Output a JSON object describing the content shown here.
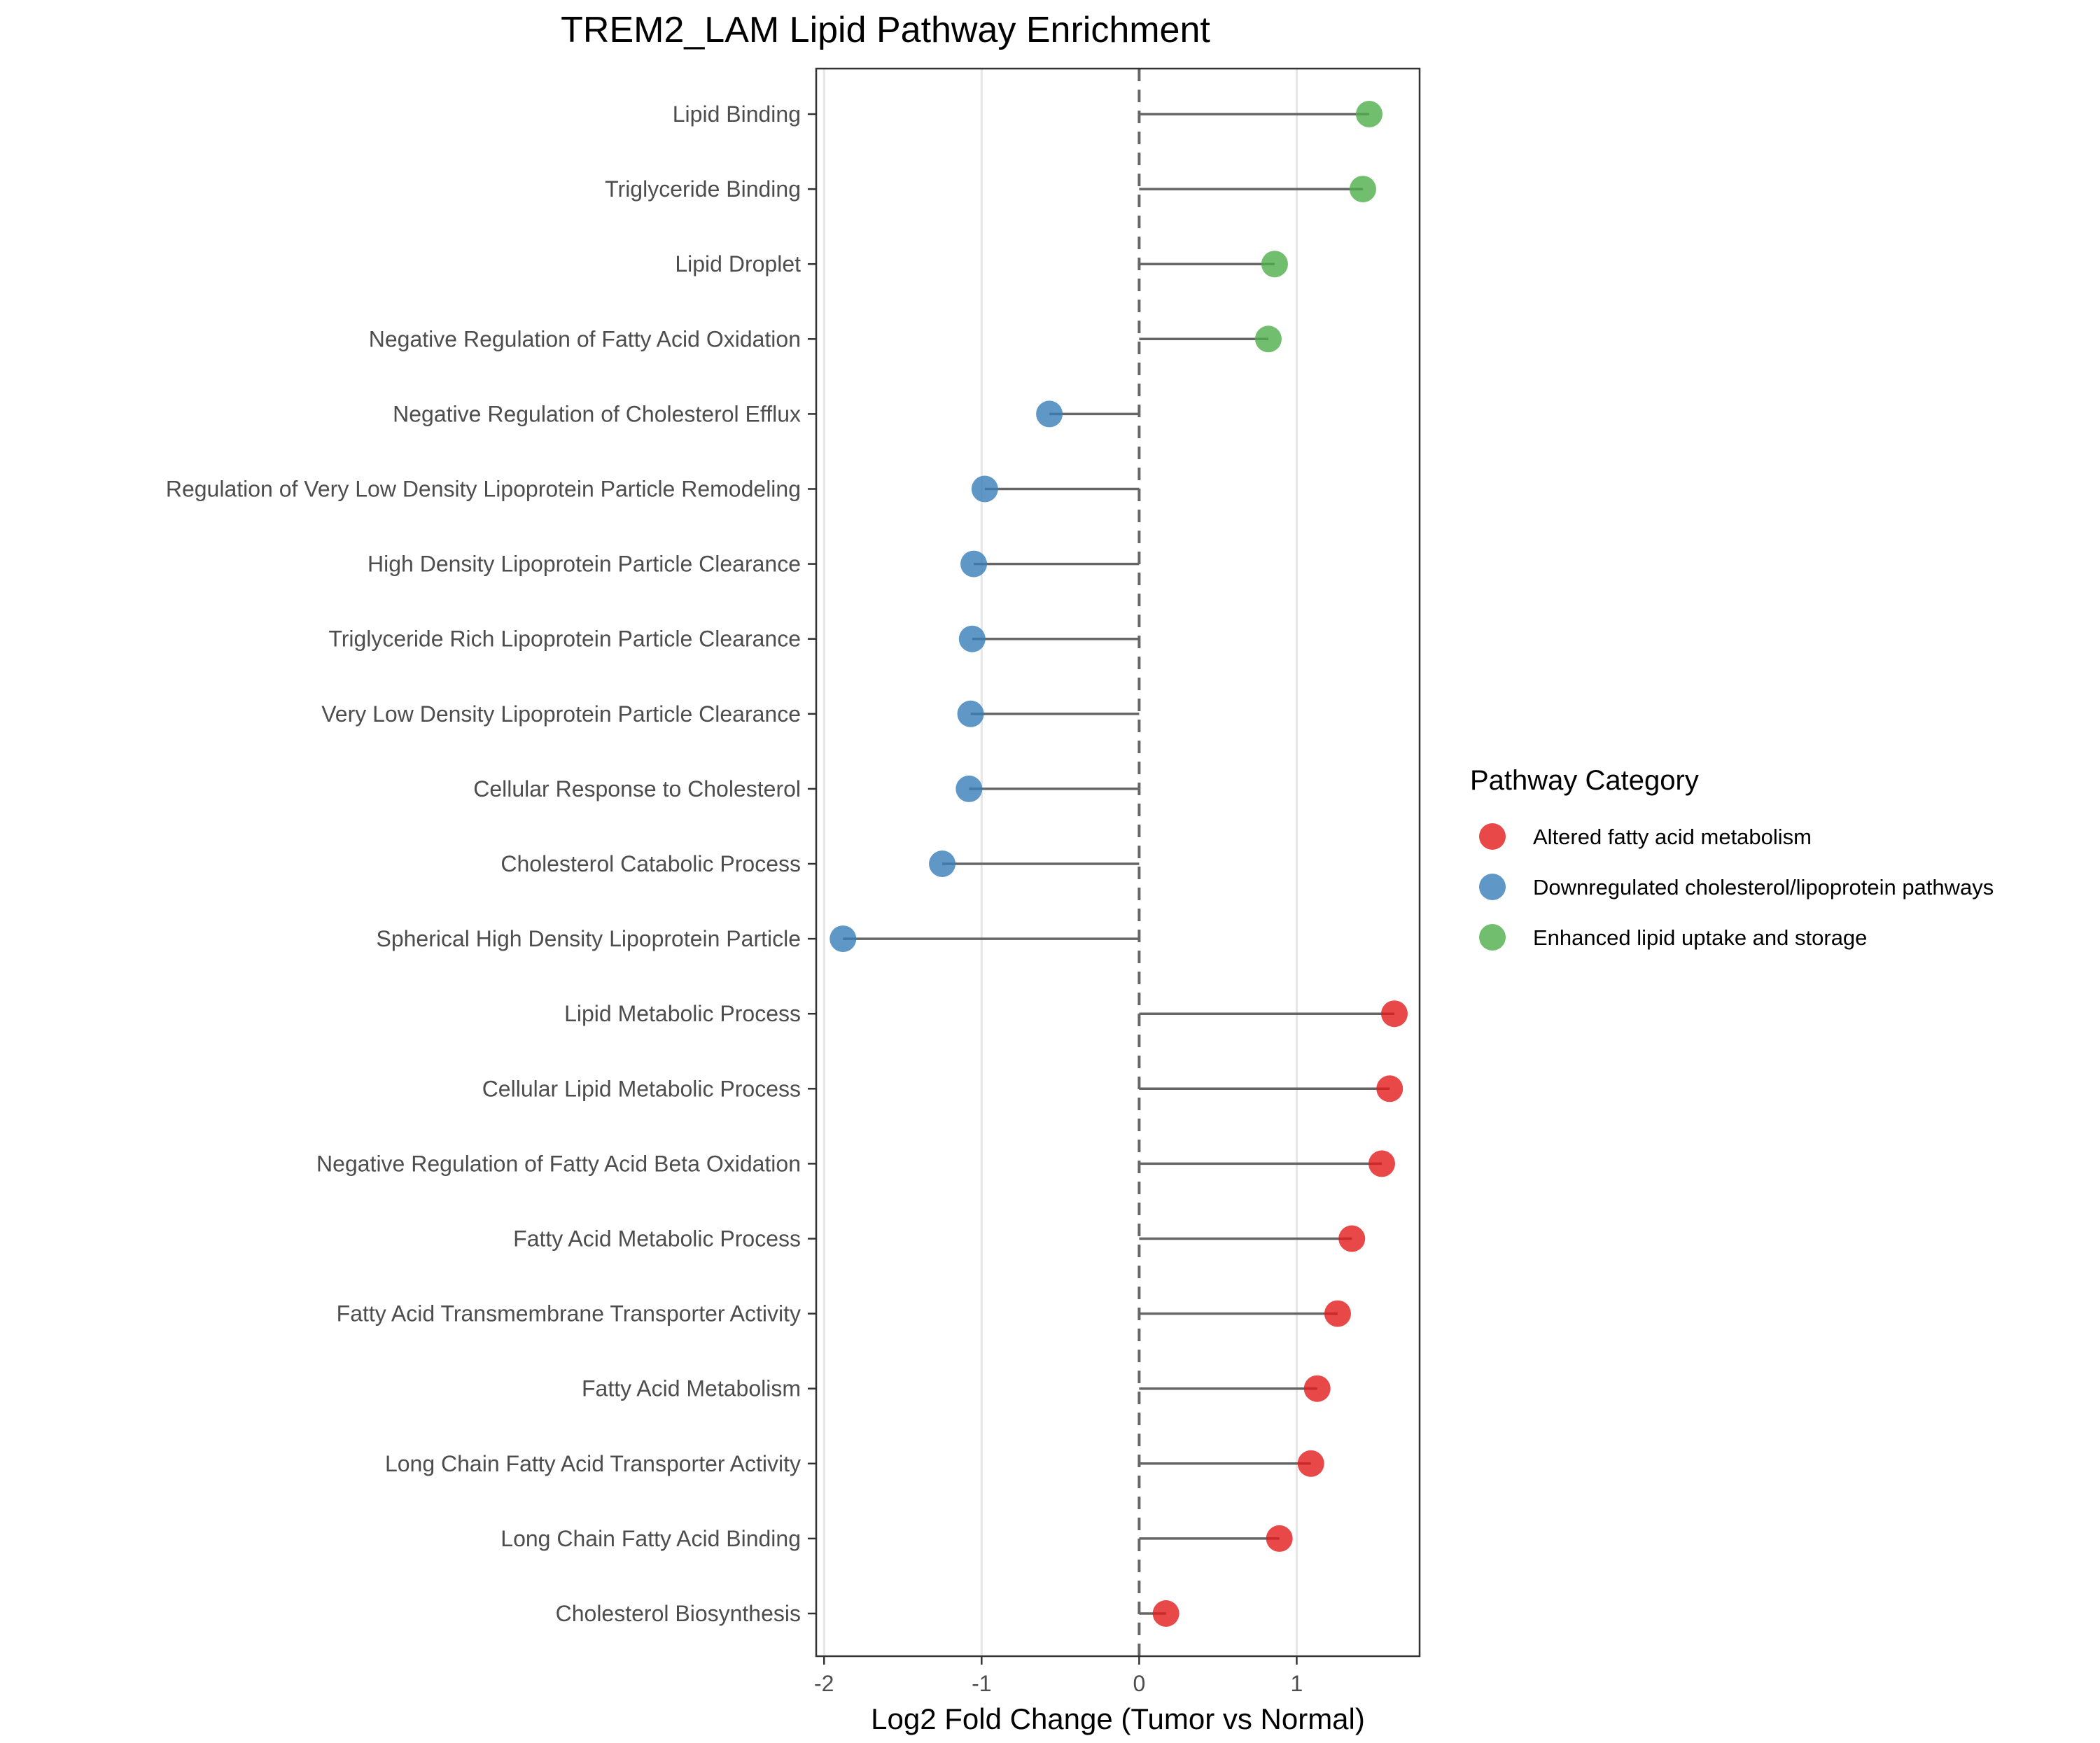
{
  "chart_data": {
    "type": "lollipop",
    "title": "TREM2_LAM Lipid Pathway Enrichment",
    "xlabel": "Log2 Fold Change (Tumor vs Normal)",
    "ylabel": "",
    "xlim": [
      -2.05,
      1.78
    ],
    "xticks": [
      -2,
      -1,
      0,
      1
    ],
    "xtick_labels": [
      "-2",
      "-1",
      "0",
      "1"
    ],
    "reference_line": 0,
    "grid": "vertical major",
    "legend": {
      "title": "Pathway Category",
      "placement": "right",
      "entries": [
        {
          "label": "Altered fatty acid metabolism",
          "color": "#E41A1C"
        },
        {
          "label": "Downregulated cholesterol/lipoprotein pathways",
          "color": "#377EB8"
        },
        {
          "label": "Enhanced lipid uptake and storage",
          "color": "#4DAF4A"
        }
      ]
    },
    "points": [
      {
        "label": "Lipid Binding",
        "value": 1.46,
        "category": 2
      },
      {
        "label": "Triglyceride Binding",
        "value": 1.42,
        "category": 2
      },
      {
        "label": "Lipid Droplet",
        "value": 0.86,
        "category": 2
      },
      {
        "label": "Negative Regulation of Fatty Acid Oxidation",
        "value": 0.82,
        "category": 2
      },
      {
        "label": "Negative Regulation of Cholesterol Efflux",
        "value": -0.57,
        "category": 1
      },
      {
        "label": "Regulation of Very Low Density Lipoprotein Particle Remodeling",
        "value": -0.98,
        "category": 1
      },
      {
        "label": "High Density Lipoprotein Particle Clearance",
        "value": -1.05,
        "category": 1
      },
      {
        "label": "Triglyceride Rich Lipoprotein Particle Clearance",
        "value": -1.06,
        "category": 1
      },
      {
        "label": "Very Low Density Lipoprotein Particle Clearance",
        "value": -1.07,
        "category": 1
      },
      {
        "label": "Cellular Response to Cholesterol",
        "value": -1.08,
        "category": 1
      },
      {
        "label": "Cholesterol Catabolic Process",
        "value": -1.25,
        "category": 1
      },
      {
        "label": "Spherical High Density Lipoprotein Particle",
        "value": -1.88,
        "category": 1
      },
      {
        "label": "Lipid Metabolic Process",
        "value": 1.62,
        "category": 0
      },
      {
        "label": "Cellular Lipid Metabolic Process",
        "value": 1.59,
        "category": 0
      },
      {
        "label": "Negative Regulation of Fatty Acid Beta Oxidation",
        "value": 1.54,
        "category": 0
      },
      {
        "label": "Fatty Acid Metabolic Process",
        "value": 1.35,
        "category": 0
      },
      {
        "label": "Fatty Acid Transmembrane Transporter Activity",
        "value": 1.26,
        "category": 0
      },
      {
        "label": "Fatty Acid Metabolism",
        "value": 1.13,
        "category": 0
      },
      {
        "label": "Long Chain Fatty Acid Transporter Activity",
        "value": 1.09,
        "category": 0
      },
      {
        "label": "Long Chain Fatty Acid Binding",
        "value": 0.89,
        "category": 0
      },
      {
        "label": "Cholesterol Biosynthesis",
        "value": 0.17,
        "category": 0
      }
    ]
  }
}
